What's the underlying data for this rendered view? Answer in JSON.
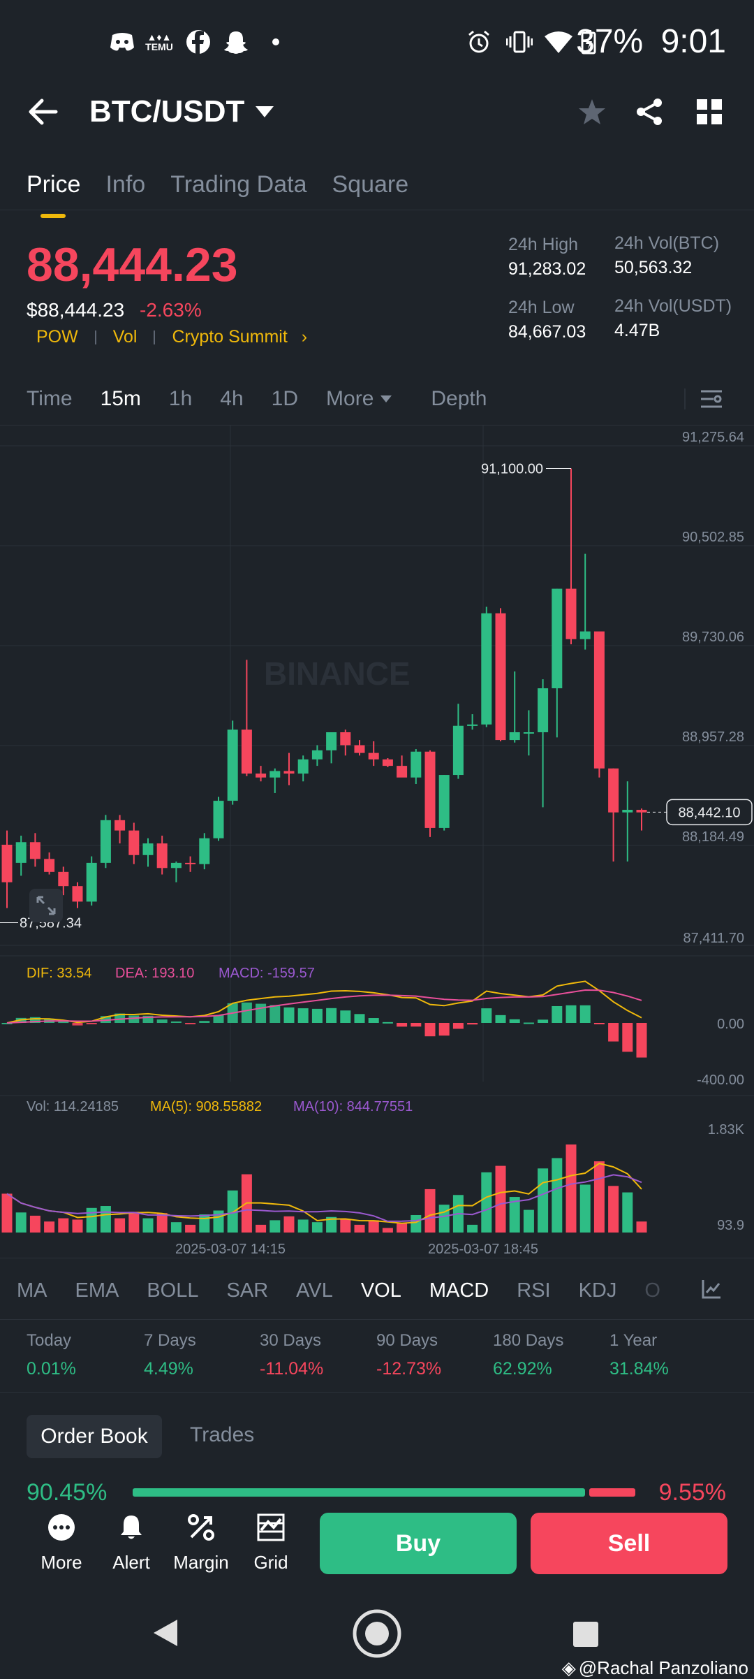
{
  "status_bar": {
    "battery": "37%",
    "time": "9:01",
    "icons": [
      "discord-icon",
      "temu-icon",
      "facebook-icon",
      "snapchat-icon",
      "dot-icon",
      "alarm-icon",
      "vibrate-icon",
      "wifi-icon",
      "battery-icon"
    ],
    "temu_text": "TEMU"
  },
  "header": {
    "title": "BTC/USDT",
    "tabs": [
      "Price",
      "Info",
      "Trading Data",
      "Square"
    ]
  },
  "price": {
    "last": "88,444.23",
    "usd": "$88,444.23",
    "change": "-2.63%",
    "tags": [
      "POW",
      "Vol",
      "Crypto Summit"
    ],
    "high_label": "24h High",
    "high": "91,283.02",
    "low_label": "24h Low",
    "low": "84,667.03",
    "vol_btc_label": "24h Vol(BTC)",
    "vol_btc": "50,563.32",
    "vol_usdt_label": "24h Vol(USDT)",
    "vol_usdt": "4.47B"
  },
  "intervals": [
    "Time",
    "15m",
    "1h",
    "4h",
    "1D",
    "More",
    "Depth"
  ],
  "indicators": [
    "MA",
    "EMA",
    "BOLL",
    "SAR",
    "AVL",
    "VOL",
    "MACD",
    "RSI",
    "KDJ",
    "O"
  ],
  "performance": [
    {
      "label": "Today",
      "value": "0.01%"
    },
    {
      "label": "7 Days",
      "value": "4.49%"
    },
    {
      "label": "30 Days",
      "value": "-11.04%"
    },
    {
      "label": "90 Days",
      "value": "-12.73%"
    },
    {
      "label": "180 Days",
      "value": "62.92%"
    },
    {
      "label": "1 Year",
      "value": "31.84%"
    }
  ],
  "orderbook": {
    "tab_label": "Order Book",
    "trades_label": "Trades",
    "buy_pct": "90.45%",
    "sell_pct": "9.55%"
  },
  "actions": [
    "More",
    "Alert",
    "Margin",
    "Grid"
  ],
  "buy_label": "Buy",
  "sell_label": "Sell",
  "watermark": "BINANCE",
  "credit": "@Rachal Panzoliano",
  "colors": {
    "up": "#2ebd85",
    "down": "#f6465d",
    "accent": "#f0b90b",
    "dif": "#f0b90b",
    "dea": "#e84f9a",
    "macd": "#9b59d0"
  },
  "chart_data": {
    "type": "candlestick",
    "price_axis": [
      "91,275.64",
      "90,502.85",
      "89,730.06",
      "88,957.28",
      "88,184.49",
      "87,411.70"
    ],
    "ylim": [
      87411.7,
      91275.64
    ],
    "time_labels": [
      "2025-03-07 14:15",
      "2025-03-07 18:45"
    ],
    "current_price_tag": "88,442.10",
    "max_marker": "91,100.00",
    "min_marker": "87,587.34",
    "candles": [
      [
        88190,
        88300,
        87700,
        87900
      ],
      [
        88050,
        88260,
        87950,
        88210
      ],
      [
        88210,
        88280,
        88020,
        88080
      ],
      [
        88080,
        88130,
        87960,
        87980
      ],
      [
        87980,
        88020,
        87800,
        87870
      ],
      [
        87870,
        87900,
        87700,
        87750
      ],
      [
        87750,
        88100,
        87720,
        88050
      ],
      [
        88050,
        88420,
        88010,
        88380
      ],
      [
        88380,
        88420,
        88200,
        88300
      ],
      [
        88300,
        88360,
        88040,
        88110
      ],
      [
        88110,
        88240,
        88020,
        88200
      ],
      [
        88200,
        88260,
        87960,
        88010
      ],
      [
        88010,
        88060,
        87900,
        88050
      ],
      [
        88050,
        88100,
        87980,
        88040
      ],
      [
        88040,
        88280,
        88000,
        88240
      ],
      [
        88240,
        88560,
        88220,
        88530
      ],
      [
        88530,
        89150,
        88500,
        89080
      ],
      [
        89080,
        89620,
        88720,
        88740
      ],
      [
        88740,
        88800,
        88680,
        88710
      ],
      [
        88710,
        88780,
        88590,
        88760
      ],
      [
        88760,
        88900,
        88650,
        88740
      ],
      [
        88740,
        88880,
        88680,
        88850
      ],
      [
        88850,
        88960,
        88800,
        88920
      ],
      [
        88920,
        89060,
        88820,
        89060
      ],
      [
        89060,
        89080,
        88880,
        88960
      ],
      [
        88960,
        89000,
        88880,
        88900
      ],
      [
        88900,
        88990,
        88800,
        88850
      ],
      [
        88850,
        88860,
        88790,
        88800
      ],
      [
        88800,
        88880,
        88740,
        88710
      ],
      [
        88710,
        88930,
        88660,
        88910
      ],
      [
        88910,
        88920,
        88250,
        88320
      ],
      [
        88320,
        88730,
        88300,
        88730
      ],
      [
        88730,
        89280,
        88700,
        89110
      ],
      [
        89110,
        89200,
        89080,
        89120
      ],
      [
        89120,
        90030,
        89100,
        89980
      ],
      [
        89980,
        90020,
        88990,
        89000
      ],
      [
        89000,
        89530,
        88980,
        89060
      ],
      [
        89060,
        89230,
        88880,
        89060
      ],
      [
        89060,
        89470,
        88480,
        89400
      ],
      [
        89400,
        90170,
        89020,
        90170
      ],
      [
        90170,
        91100,
        89740,
        89780
      ],
      [
        89780,
        90440,
        89700,
        89840
      ],
      [
        89840,
        89810,
        88710,
        88780
      ],
      [
        88780,
        88780,
        88060,
        88440
      ],
      [
        88440,
        88680,
        88060,
        88460
      ],
      [
        88460,
        88470,
        88300,
        88440
      ]
    ],
    "macd": {
      "dif": "DIF: 33.54",
      "dea": "DEA: 193.10",
      "macd": "MACD: -159.57",
      "axis": [
        "0.00",
        "-400.00"
      ]
    },
    "volume": {
      "vol": "Vol: 114.24185",
      "ma5": "MA(5): 908.55882",
      "ma10": "MA(10): 844.77551",
      "axis": [
        "1.83K",
        "93.9"
      ]
    }
  }
}
